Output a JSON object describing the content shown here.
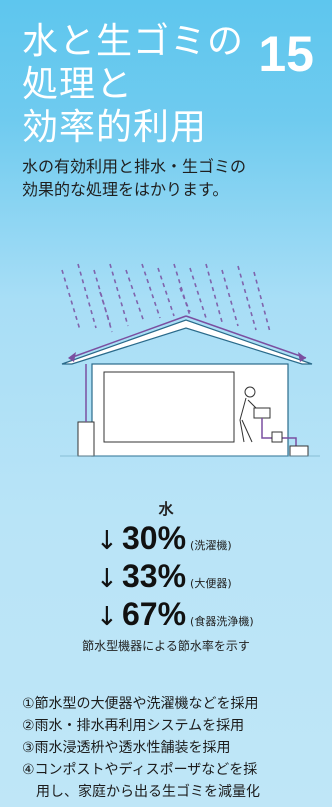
{
  "header": {
    "title_lines": [
      "水と生ゴミの",
      "処理と",
      "効率的利用"
    ],
    "number": "15"
  },
  "description": {
    "line1": "水の有効利用と排水・生ゴミの",
    "line2": "効果的な処理をはかります。"
  },
  "water": {
    "heading": "水",
    "arrow": "↓",
    "rates": [
      {
        "value": "30%",
        "label": "(洗濯機)"
      },
      {
        "value": "33%",
        "label": "(大便器)"
      },
      {
        "value": "67%",
        "label": "(食器洗浄機)"
      }
    ],
    "caption": "節水型機器による節水率を示す"
  },
  "measures": {
    "item1": "①節水型の大便器や洗濯機などを採用",
    "item2": "②雨水・排水再利用システムを採用",
    "item3": "③雨水浸透枡や透水性舗装を採用",
    "item4_line1": "④コンポストやディスポーザなどを採",
    "item4_line2": "用し、家庭から出る生ゴミを減量化"
  },
  "colors": {
    "panel_top": "#5ec6ee",
    "panel_bottom": "#bfe6f7",
    "rain": "#7a4fa0",
    "roof_outline": "#2a6a8a",
    "text": "#1f1f1f"
  }
}
